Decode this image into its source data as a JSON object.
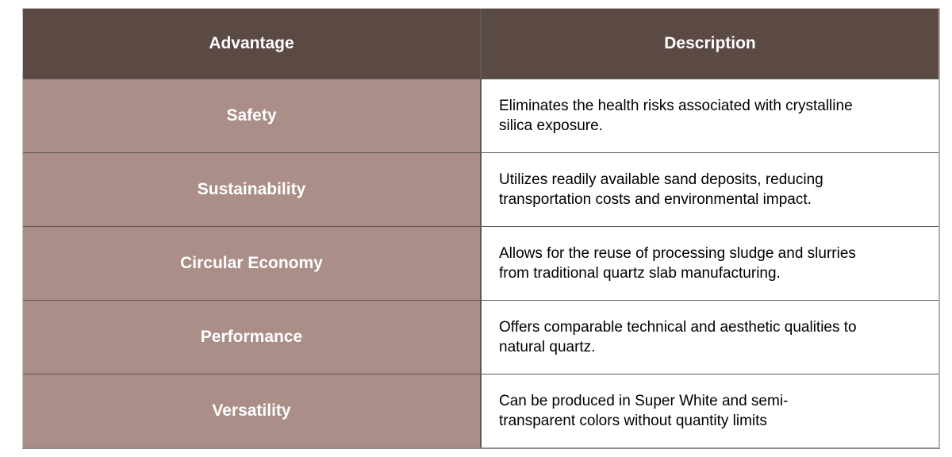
{
  "table": {
    "headers": {
      "advantage": "Advantage",
      "description": "Description"
    },
    "rows": [
      {
        "advantage": "Safety",
        "description": "Eliminates the health risks associated with crystalline silica exposure."
      },
      {
        "advantage": "Sustainability",
        "description": "Utilizes readily available sand deposits, reducing transportation costs and environmental impact."
      },
      {
        "advantage": "Circular Economy",
        "description": "Allows for the reuse of processing sludge and slurries from traditional quartz slab manufacturing."
      },
      {
        "advantage": "Performance",
        "description": "Offers comparable technical and aesthetic qualities to natural quartz."
      },
      {
        "advantage": "Versatility",
        "description": "Can be produced in Super White and semi-transparent colors without quantity limits"
      }
    ]
  },
  "colors": {
    "header_bg": "#5a4a43",
    "label_bg": "#ab8e87",
    "header_text": "#ffffff",
    "body_text": "#000000",
    "divider": "#5d5855"
  }
}
